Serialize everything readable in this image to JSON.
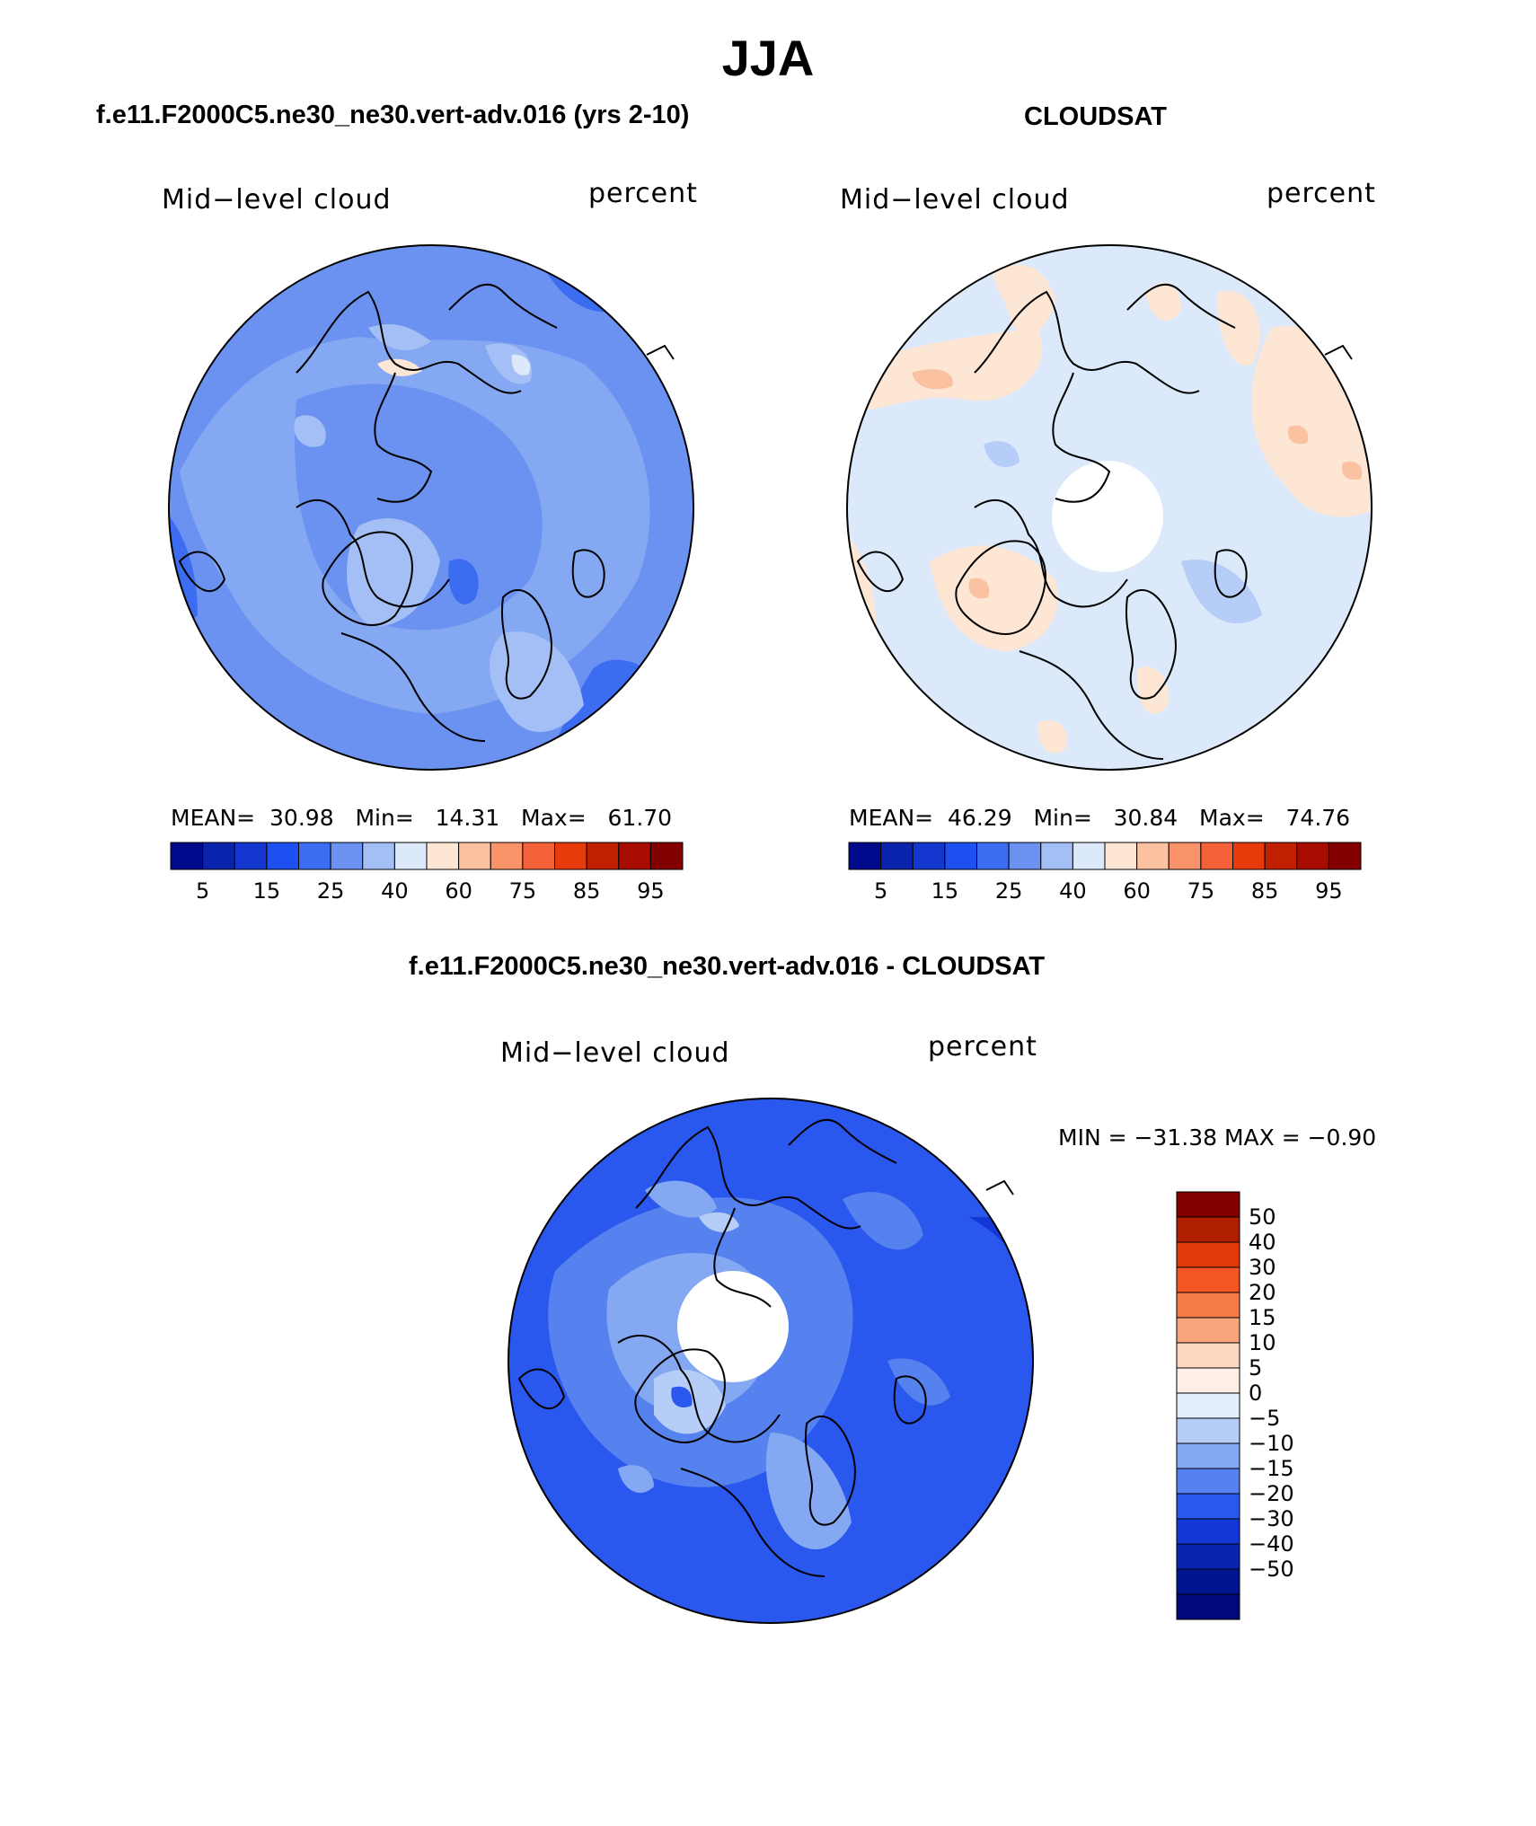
{
  "main_title": "JJA",
  "panels": {
    "model": {
      "title": "f.e11.F2000C5.ne30_ne30.vert-adv.016 (yrs 2-10)",
      "left_label": "Mid−level cloud",
      "right_label": "percent",
      "mean_label": "MEAN=",
      "mean": "30.98",
      "min_label": "Min=",
      "min": "14.31",
      "max_label": "Max=",
      "max": "61.70"
    },
    "obs": {
      "title": "CLOUDSAT",
      "left_label": "Mid−level cloud",
      "right_label": "percent",
      "mean_label": "MEAN=",
      "mean": "46.29",
      "min_label": "Min=",
      "min": "30.84",
      "max_label": "Max=",
      "max": "74.76"
    },
    "diff": {
      "title": "f.e11.F2000C5.ne30_ne30.vert-adv.016 - CLOUDSAT",
      "left_label": "Mid−level cloud",
      "right_label": "percent",
      "minmax": "MIN = −31.38 MAX =  −0.90"
    }
  },
  "colorbar_abs": {
    "colors": [
      "#000a8c",
      "#0a23ad",
      "#1437cf",
      "#1e4ff0",
      "#3c6cf0",
      "#6b92f0",
      "#a4bff5",
      "#dce9fb",
      "#fde6d4",
      "#fbc2a2",
      "#f8936a",
      "#f5623a",
      "#e83b0c",
      "#c02000",
      "#a80c00",
      "#820000"
    ],
    "ticks": [
      "5",
      "15",
      "25",
      "40",
      "60",
      "75",
      "85",
      "95"
    ]
  },
  "colorbar_diff": {
    "colors_top_to_bottom": [
      "#820000",
      "#b01e00",
      "#e03a0c",
      "#f55524",
      "#f57a46",
      "#f8a47c",
      "#fbd7bf",
      "#fdeee6",
      "#e4eefc",
      "#b6cdf7",
      "#84a8f2",
      "#5582ee",
      "#2a57ee",
      "#1438d8",
      "#0a23b0",
      "#001590",
      "#00087a"
    ],
    "labels": [
      "50",
      "40",
      "30",
      "20",
      "15",
      "10",
      "5",
      "0",
      "−5",
      "−10",
      "−15",
      "−20",
      "−30",
      "−40",
      "−50"
    ]
  }
}
